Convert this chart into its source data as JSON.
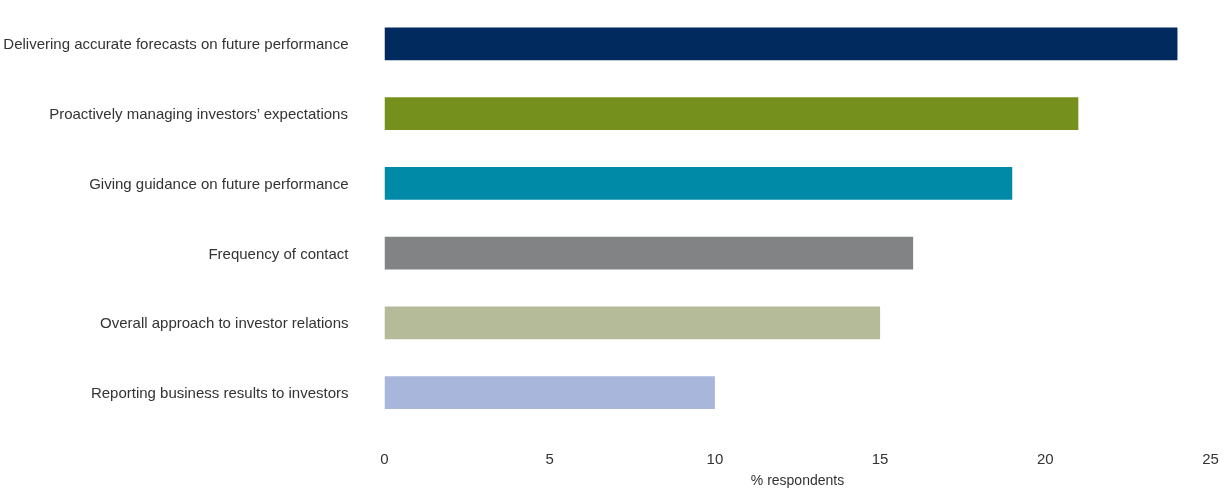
{
  "chart_data": {
    "type": "bar",
    "orientation": "horizontal",
    "xlabel": "% respondents",
    "categories": [
      "Delivering accurate forecasts on future performance",
      "Proactively managing investors’ expectations",
      "Giving guidance on future performance",
      "Frequency of contact",
      "Overall approach to investor relations",
      "Reporting business results to investors"
    ],
    "values": [
      24,
      21,
      19,
      16,
      15,
      10
    ],
    "colors": [
      "#012a5e",
      "#76901e",
      "#008aa8",
      "#818385",
      "#b5bb98",
      "#a9b6dc"
    ],
    "xlim": [
      0,
      25
    ],
    "xticks": [
      0,
      5,
      10,
      15,
      20,
      25
    ],
    "grid": false
  }
}
